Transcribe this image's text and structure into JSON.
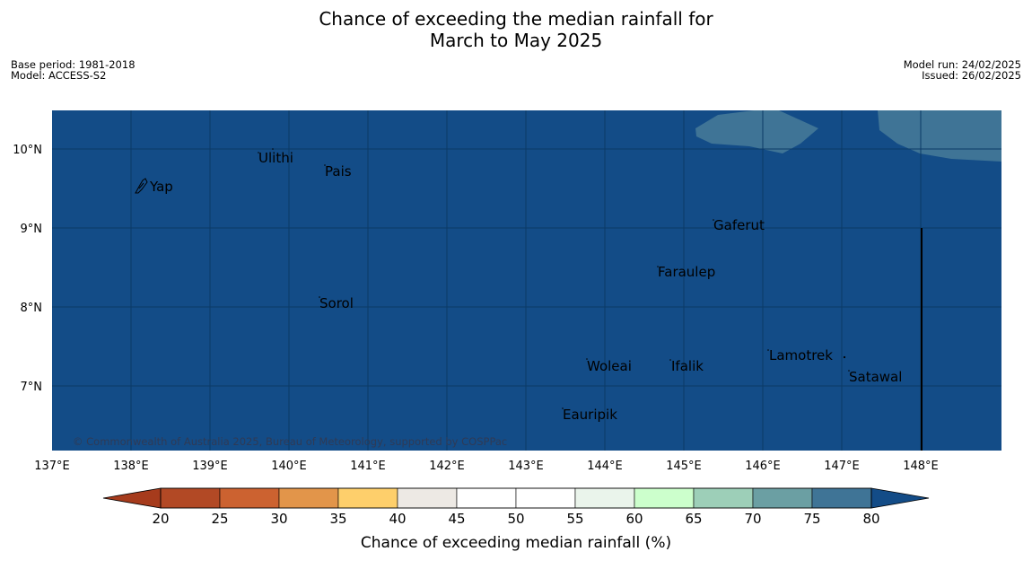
{
  "title": {
    "line1": "Chance of exceeding the median rainfall for",
    "line2": "March to May 2025"
  },
  "meta": {
    "base_period": "Base period: 1981-2018",
    "model": "Model: ACCESS-S2",
    "model_run": "Model run: 24/02/2025",
    "issued": "Issued: 26/02/2025"
  },
  "map": {
    "background_color": "#134c87",
    "lon_ticks": [
      "137°E",
      "138°E",
      "139°E",
      "140°E",
      "141°E",
      "142°E",
      "143°E",
      "144°E",
      "145°E",
      "146°E",
      "147°E",
      "148°E"
    ],
    "lat_ticks": [
      "10°N",
      "9°N",
      "8°N",
      "7°N"
    ],
    "places": [
      {
        "name": "Ulithi"
      },
      {
        "name": "Pais"
      },
      {
        "name": "Yap"
      },
      {
        "name": "Gaferut"
      },
      {
        "name": "Faraulep"
      },
      {
        "name": "Sorol"
      },
      {
        "name": "Lamotrek"
      },
      {
        "name": "Woleai"
      },
      {
        "name": "Ifalik"
      },
      {
        "name": "Satawal"
      },
      {
        "name": "Eauripik"
      }
    ],
    "copyright": "© Commonwealth of Australia 2025, Bureau of Meteorology, supported by COSPPac"
  },
  "colorbar": {
    "label": "Chance of exceeding median rainfall (%)",
    "ticks": [
      "20",
      "25",
      "30",
      "35",
      "40",
      "45",
      "50",
      "55",
      "60",
      "65",
      "70",
      "75",
      "80"
    ],
    "colors": [
      "#a63b1c",
      "#b24925",
      "#cc6230",
      "#e2954a",
      "#fecf6b",
      "#ede9e4",
      "#ffffff",
      "#ffffff",
      "#eaf4eb",
      "#ccffcc",
      "#9dcfb8",
      "#6b9fa3",
      "#3f7496",
      "#134c87"
    ]
  }
}
